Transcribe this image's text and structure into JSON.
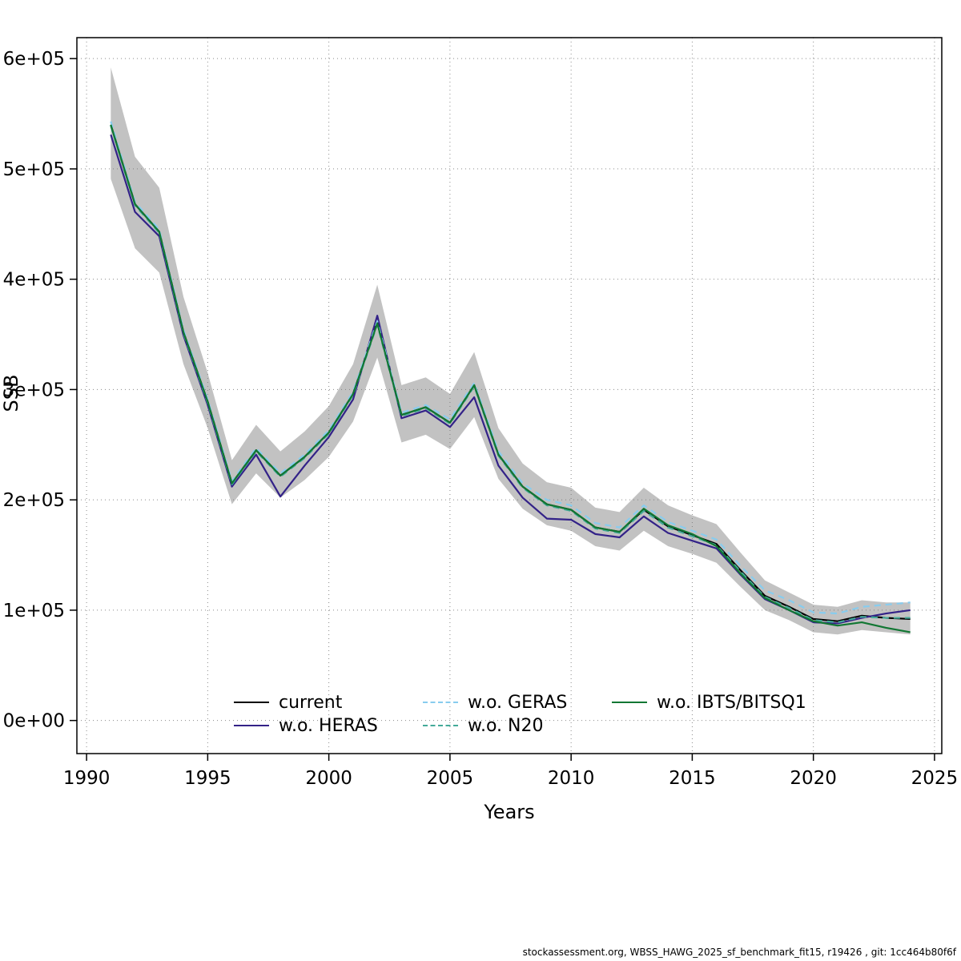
{
  "chart_data": {
    "type": "line",
    "title": "",
    "xlabel": "Years",
    "ylabel": "SSB",
    "grid": true,
    "legend_position": "bottom-center-inside",
    "xlim": [
      1989.6,
      2025.3
    ],
    "ylim": [
      -30000,
      619000
    ],
    "xticks": [
      1990,
      1995,
      2000,
      2005,
      2010,
      2015,
      2020,
      2025
    ],
    "yticks": [
      0,
      100000,
      200000,
      300000,
      400000,
      500000,
      600000
    ],
    "ytick_labels": [
      "0e+00",
      "1e+05",
      "2e+05",
      "3e+05",
      "4e+05",
      "5e+05",
      "6e+05"
    ],
    "x": [
      1991,
      1992,
      1993,
      1994,
      1995,
      1996,
      1997,
      1998,
      1999,
      2000,
      2001,
      2002,
      2003,
      2004,
      2005,
      2006,
      2007,
      2008,
      2009,
      2010,
      2011,
      2012,
      2013,
      2014,
      2015,
      2016,
      2017,
      2018,
      2019,
      2020,
      2021,
      2022,
      2023,
      2024
    ],
    "band": {
      "color": "rgba(120,120,120,0.45)",
      "lower": [
        491000,
        428000,
        406000,
        323000,
        265000,
        196000,
        224000,
        202000,
        218000,
        239000,
        271000,
        329000,
        252000,
        259000,
        246000,
        275000,
        219000,
        192000,
        177000,
        172000,
        158000,
        154000,
        172000,
        158000,
        151000,
        143000,
        121000,
        100000,
        91000,
        80000,
        78000,
        82000,
        80000,
        78000
      ],
      "upper": [
        592000,
        511000,
        483000,
        384000,
        315000,
        236000,
        268000,
        244000,
        262000,
        285000,
        323000,
        395000,
        304000,
        311000,
        296000,
        334000,
        265000,
        233000,
        216000,
        211000,
        193000,
        189000,
        211000,
        195000,
        186000,
        178000,
        152000,
        127000,
        116000,
        105000,
        103000,
        109000,
        107000,
        107000
      ]
    },
    "series": [
      {
        "name": "current",
        "color": "#000000",
        "dash": "solid",
        "values": [
          540000,
          468000,
          443000,
          352000,
          289000,
          215000,
          245000,
          222000,
          239000,
          261000,
          296000,
          361000,
          277000,
          284000,
          270000,
          304000,
          241000,
          212000,
          196000,
          191000,
          175000,
          171000,
          191000,
          176000,
          168000,
          160000,
          136000,
          113000,
          103000,
          92000,
          90000,
          95000,
          93000,
          92000
        ]
      },
      {
        "name": "w.o. HERAS",
        "color": "#332288",
        "dash": "solid",
        "values": [
          531000,
          461000,
          439000,
          349000,
          286000,
          212000,
          241000,
          203000,
          231000,
          257000,
          291000,
          367000,
          274000,
          281000,
          266000,
          293000,
          231000,
          202000,
          183000,
          182000,
          169000,
          166000,
          185000,
          170000,
          163000,
          156000,
          132000,
          110000,
          100000,
          89000,
          88000,
          93000,
          97000,
          100000
        ]
      },
      {
        "name": "w.o. GERAS",
        "color": "#88CCEE",
        "dash": "dashed",
        "values": [
          543000,
          470000,
          445000,
          354000,
          291000,
          217000,
          247000,
          224000,
          241000,
          263000,
          298000,
          362000,
          279000,
          286000,
          273000,
          306000,
          244000,
          215000,
          200000,
          195000,
          179000,
          175000,
          195000,
          180000,
          172000,
          164000,
          140000,
          118000,
          109000,
          98000,
          97000,
          103000,
          105000,
          107000
        ]
      },
      {
        "name": "w.o. N20",
        "color": "#44AA99",
        "dash": "dashed",
        "values": [
          539000,
          467000,
          442000,
          351000,
          288000,
          214000,
          244000,
          221000,
          238000,
          260000,
          295000,
          359000,
          276000,
          283000,
          269000,
          303000,
          240000,
          211000,
          195000,
          190000,
          174000,
          170000,
          190000,
          175000,
          167000,
          159000,
          135000,
          112000,
          102000,
          91000,
          89000,
          94000,
          93000,
          93000
        ]
      },
      {
        "name": "w.o. IBTS/BITSQ1",
        "color": "#117733",
        "dash": "solid",
        "values": [
          540000,
          468000,
          443000,
          352000,
          289000,
          215000,
          245000,
          222000,
          239000,
          261000,
          296000,
          360000,
          277000,
          284000,
          270000,
          304000,
          241000,
          212000,
          196000,
          191000,
          175000,
          171000,
          192000,
          177000,
          169000,
          158000,
          133000,
          111000,
          100000,
          90000,
          86000,
          89000,
          84000,
          80000
        ]
      }
    ]
  },
  "footer": {
    "text": "stockassessment.org, WBSS_HAWG_2025_sf_benchmark_fit15, r19426 , git: 1cc464b80f6f"
  }
}
